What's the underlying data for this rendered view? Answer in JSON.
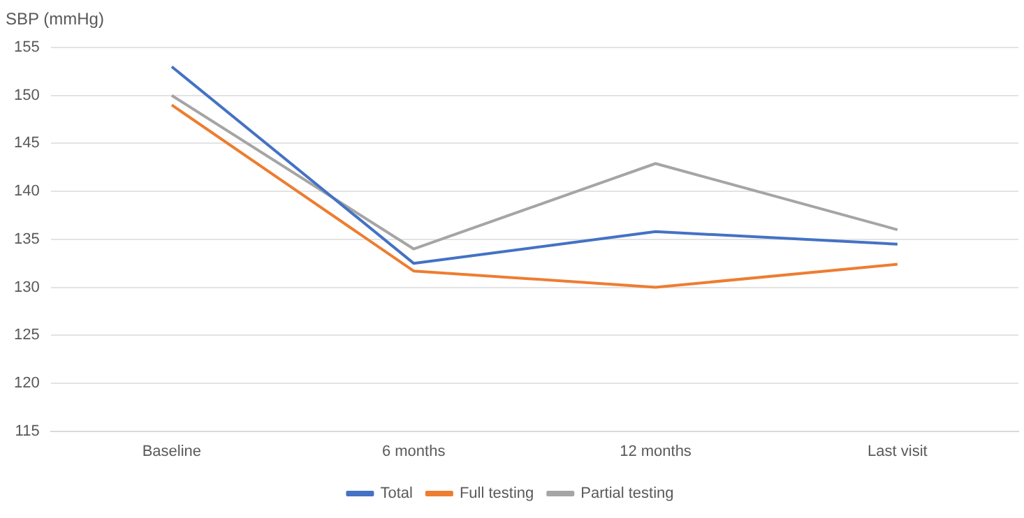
{
  "chart_data": {
    "type": "line",
    "ylabel": "SBP (mmHg)",
    "categories": [
      "Baseline",
      "6 months",
      "12 months",
      "Last visit"
    ],
    "series": [
      {
        "name": "Total",
        "color": "#4472c4",
        "values": [
          153,
          132.5,
          135.8,
          134.5
        ]
      },
      {
        "name": "Full testing",
        "color": "#ed7d31",
        "values": [
          149,
          131.7,
          130,
          132.4
        ]
      },
      {
        "name": "Partial testing",
        "color": "#a5a5a5",
        "values": [
          150,
          134,
          142.9,
          136
        ]
      }
    ],
    "ylim": [
      115,
      155
    ],
    "yticks": [
      115,
      120,
      125,
      130,
      135,
      140,
      145,
      150,
      155
    ],
    "grid": "y",
    "legend": "bottom",
    "marker": "none",
    "line_style": "solid"
  }
}
